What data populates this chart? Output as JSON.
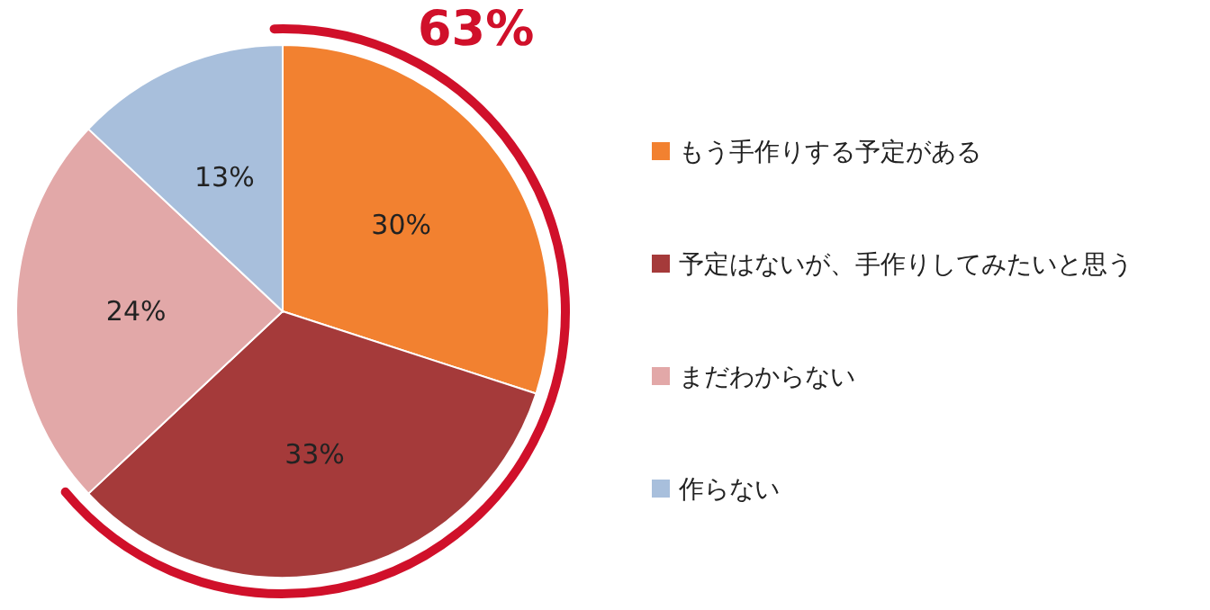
{
  "chart_data": {
    "type": "pie",
    "categories": [
      "もう手作りする予定がある",
      "予定はないが、手作りしてみたいと思う",
      "まだわからない",
      "作らない"
    ],
    "values": [
      30,
      33,
      24,
      13
    ],
    "colors": [
      "#f28130",
      "#a53a3a",
      "#e2a8a8",
      "#a8bfdc"
    ],
    "value_labels": [
      "30%",
      "33%",
      "24%",
      "13%"
    ],
    "legend": "right",
    "annotations": [
      "63%"
    ]
  }
}
